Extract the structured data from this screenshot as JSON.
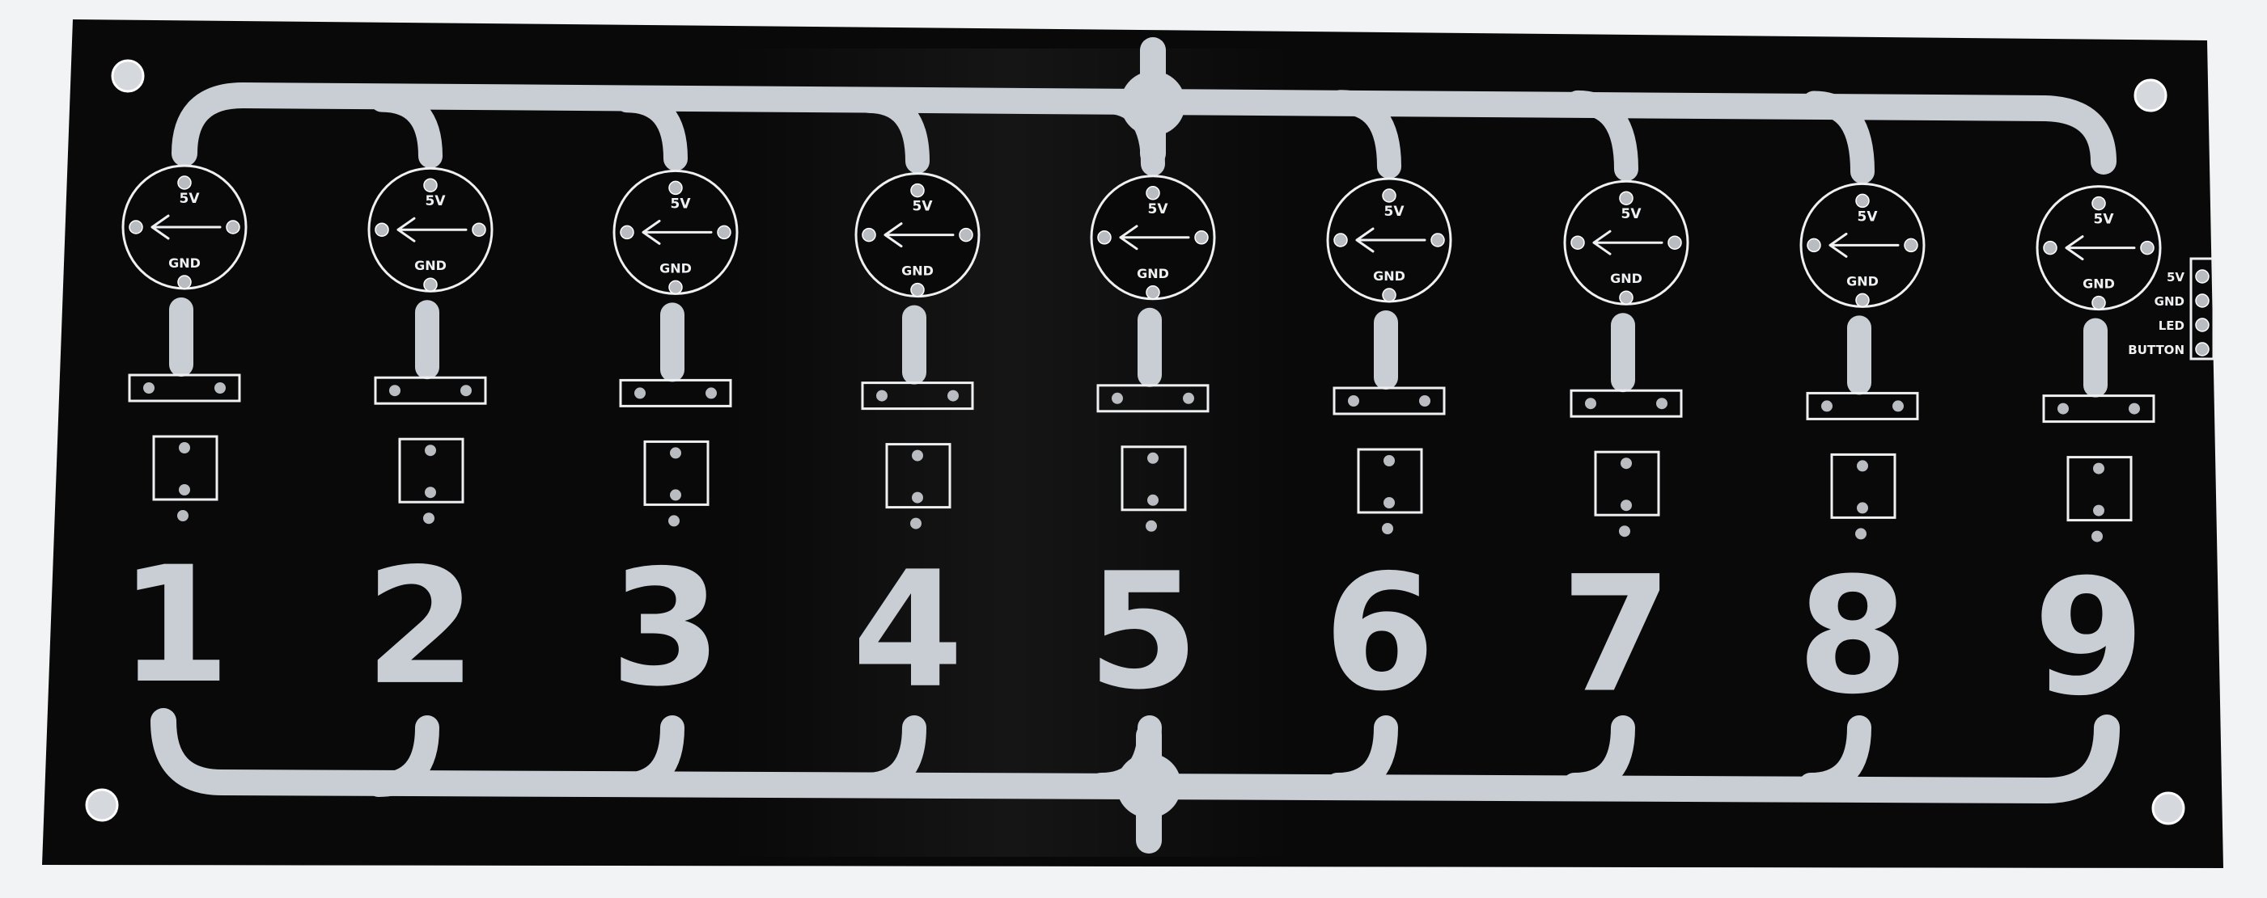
{
  "colors": {
    "background": "#f2f3f4",
    "board": "#090909",
    "trace": "#c9ced5",
    "silkscreen": "#eef0f2",
    "pad": "#b9bcc0"
  },
  "led": {
    "top_label": "5V",
    "bottom_label": "GND",
    "arrow_icon": "left-arrow-icon"
  },
  "digits": [
    "1",
    "2",
    "3",
    "4",
    "5",
    "6",
    "7",
    "8",
    "9"
  ],
  "header_pins": [
    "5V",
    "GND",
    "LED",
    "BUTTON"
  ]
}
